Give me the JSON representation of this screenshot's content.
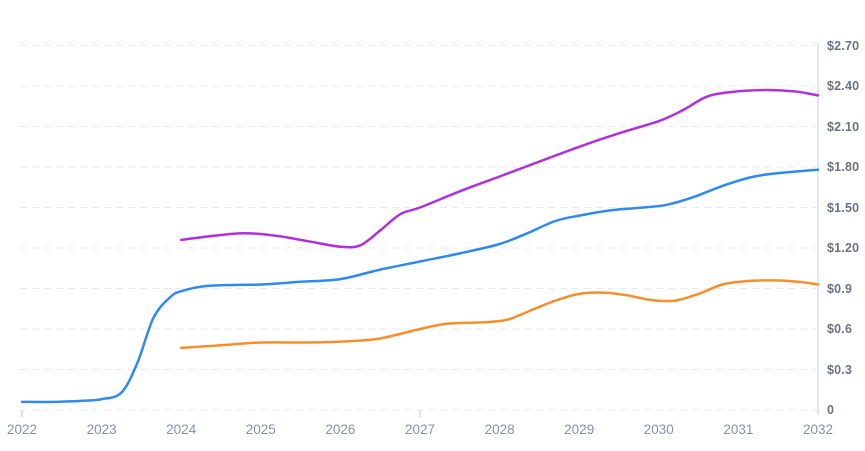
{
  "chart_data": {
    "type": "line",
    "title": "",
    "legend": "none",
    "grid": {
      "horizontal": "dashed",
      "vertical": "none"
    },
    "x_axis": {
      "min": 2022,
      "max": 2032,
      "ticks": [
        {
          "value": 2022,
          "label": "2022"
        },
        {
          "value": 2023,
          "label": "2023"
        },
        {
          "value": 2024,
          "label": "2024"
        },
        {
          "value": 2025,
          "label": "2025"
        },
        {
          "value": 2026,
          "label": "2026"
        },
        {
          "value": 2027,
          "label": "2027"
        },
        {
          "value": 2028,
          "label": "2028"
        },
        {
          "value": 2029,
          "label": "2029"
        },
        {
          "value": 2030,
          "label": "2030"
        },
        {
          "value": 2031,
          "label": "2031"
        },
        {
          "value": 2032,
          "label": "2032"
        }
      ],
      "tick_marks": [
        2022,
        2027
      ]
    },
    "y_axis": {
      "min": 0,
      "max": 2.7,
      "position": "right",
      "ticks": [
        {
          "value": 0.0,
          "label": "0"
        },
        {
          "value": 0.3,
          "label": "$0.3"
        },
        {
          "value": 0.6,
          "label": "$0.6"
        },
        {
          "value": 0.9,
          "label": "$0.9"
        },
        {
          "value": 1.2,
          "label": "$1.20"
        },
        {
          "value": 1.5,
          "label": "$1.50"
        },
        {
          "value": 1.8,
          "label": "$1.80"
        },
        {
          "value": 2.1,
          "label": "$2.10"
        },
        {
          "value": 2.4,
          "label": "$2.40"
        },
        {
          "value": 2.7,
          "label": "$2.70"
        }
      ]
    },
    "series": [
      {
        "name": "blue",
        "color": "#2f8af0",
        "points": [
          [
            2022.0,
            0.06
          ],
          [
            2022.4,
            0.06
          ],
          [
            2022.8,
            0.07
          ],
          [
            2023.0,
            0.08
          ],
          [
            2023.25,
            0.13
          ],
          [
            2023.45,
            0.35
          ],
          [
            2023.65,
            0.68
          ],
          [
            2023.85,
            0.83
          ],
          [
            2024.0,
            0.88
          ],
          [
            2024.35,
            0.92
          ],
          [
            2025.0,
            0.93
          ],
          [
            2025.5,
            0.95
          ],
          [
            2026.0,
            0.97
          ],
          [
            2026.5,
            1.04
          ],
          [
            2027.0,
            1.1
          ],
          [
            2027.5,
            1.16
          ],
          [
            2028.0,
            1.23
          ],
          [
            2028.35,
            1.31
          ],
          [
            2028.7,
            1.4
          ],
          [
            2029.0,
            1.44
          ],
          [
            2029.4,
            1.48
          ],
          [
            2029.8,
            1.5
          ],
          [
            2030.1,
            1.52
          ],
          [
            2030.45,
            1.58
          ],
          [
            2030.8,
            1.66
          ],
          [
            2031.2,
            1.73
          ],
          [
            2031.6,
            1.76
          ],
          [
            2032.0,
            1.78
          ]
        ]
      },
      {
        "name": "purple",
        "color": "#b030dd",
        "points": [
          [
            2024.0,
            1.26
          ],
          [
            2024.4,
            1.29
          ],
          [
            2024.8,
            1.31
          ],
          [
            2025.2,
            1.29
          ],
          [
            2025.6,
            1.25
          ],
          [
            2026.0,
            1.21
          ],
          [
            2026.25,
            1.22
          ],
          [
            2026.5,
            1.33
          ],
          [
            2026.75,
            1.45
          ],
          [
            2027.0,
            1.5
          ],
          [
            2027.5,
            1.62
          ],
          [
            2028.0,
            1.73
          ],
          [
            2028.5,
            1.84
          ],
          [
            2029.0,
            1.95
          ],
          [
            2029.5,
            2.05
          ],
          [
            2030.0,
            2.14
          ],
          [
            2030.3,
            2.22
          ],
          [
            2030.6,
            2.32
          ],
          [
            2030.9,
            2.355
          ],
          [
            2031.3,
            2.37
          ],
          [
            2031.7,
            2.36
          ],
          [
            2032.0,
            2.33
          ]
        ]
      },
      {
        "name": "orange",
        "color": "#f78e2b",
        "points": [
          [
            2024.0,
            0.46
          ],
          [
            2024.5,
            0.48
          ],
          [
            2025.0,
            0.5
          ],
          [
            2025.6,
            0.5
          ],
          [
            2026.1,
            0.51
          ],
          [
            2026.5,
            0.53
          ],
          [
            2027.0,
            0.6
          ],
          [
            2027.35,
            0.64
          ],
          [
            2027.8,
            0.65
          ],
          [
            2028.1,
            0.67
          ],
          [
            2028.4,
            0.74
          ],
          [
            2028.7,
            0.81
          ],
          [
            2029.0,
            0.86
          ],
          [
            2029.3,
            0.87
          ],
          [
            2029.6,
            0.85
          ],
          [
            2029.9,
            0.815
          ],
          [
            2030.2,
            0.81
          ],
          [
            2030.5,
            0.86
          ],
          [
            2030.8,
            0.93
          ],
          [
            2031.1,
            0.955
          ],
          [
            2031.45,
            0.96
          ],
          [
            2031.75,
            0.95
          ],
          [
            2032.0,
            0.93
          ]
        ]
      }
    ]
  },
  "style": {
    "background": "#ffffff",
    "gridline_color": "#e7e9f3",
    "axis_line_color": "#dde0ea",
    "tick_color": "#d5d8e2",
    "y_label_color": "#6c7280",
    "x_label_color": "#8c91a1",
    "line_width": 2.5
  }
}
